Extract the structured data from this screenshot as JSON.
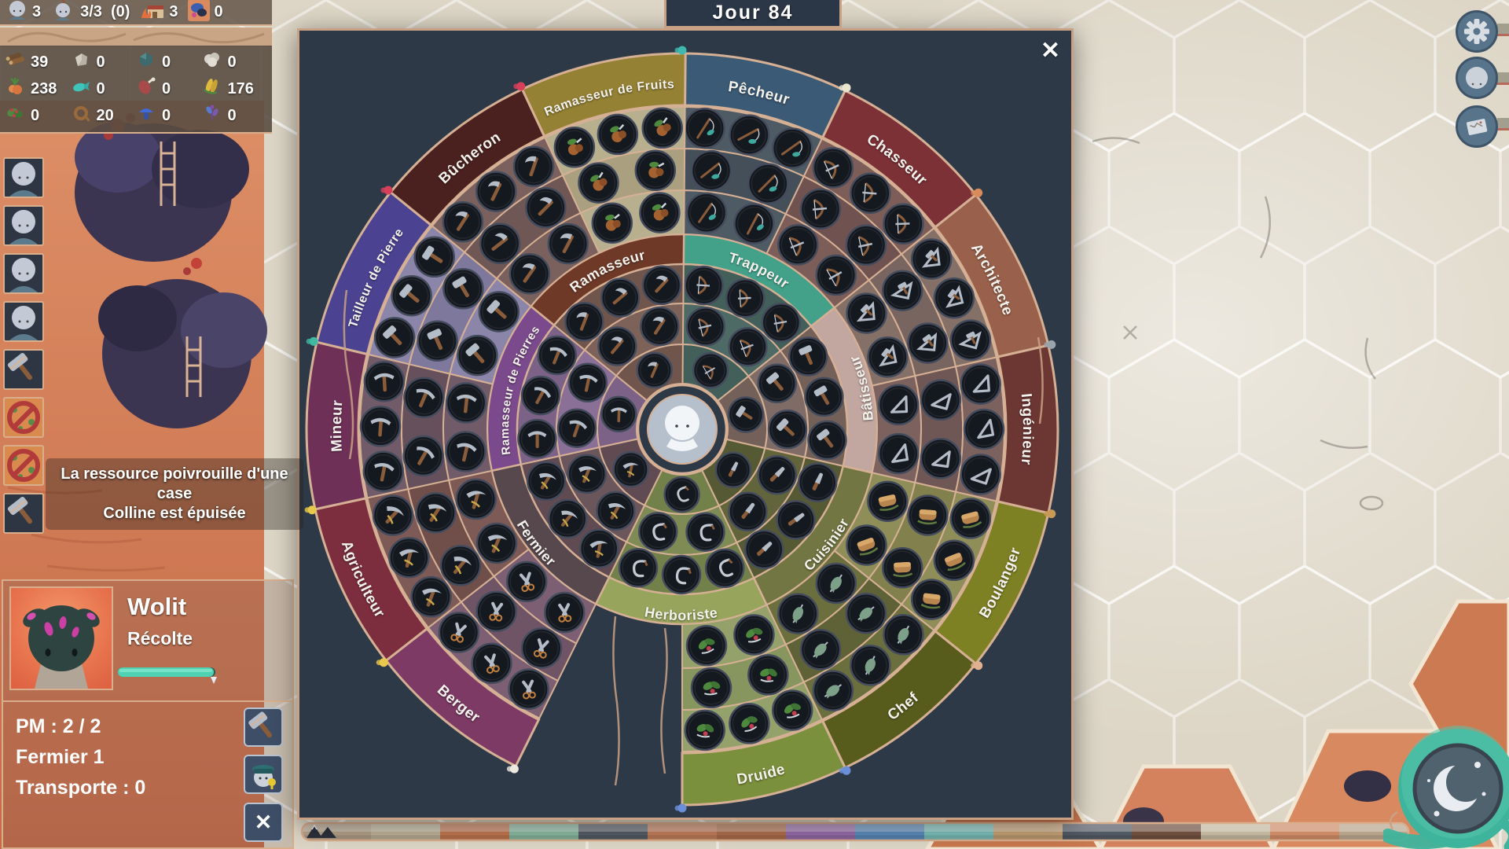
{
  "hud": {
    "day_banner": "Jour 84",
    "top_bar": [
      {
        "icon": "pupil-icon",
        "value": "3"
      },
      {
        "icon": "worker-pupil-icon",
        "value": "3/3"
      },
      {
        "icon": "none",
        "value": "(0)"
      },
      {
        "icon": "camp-icon",
        "value": "3"
      },
      {
        "icon": "tile-icon",
        "value": "0"
      }
    ],
    "resources": [
      {
        "icon": "wood",
        "value": "39"
      },
      {
        "icon": "stone",
        "value": "0"
      },
      {
        "icon": "ore",
        "value": "0"
      },
      {
        "icon": "wool",
        "value": "0"
      },
      {
        "icon": "carrot",
        "value": "238"
      },
      {
        "icon": "fish",
        "value": "0"
      },
      {
        "icon": "meat",
        "value": "0"
      },
      {
        "icon": "corn",
        "value": "176"
      },
      {
        "icon": "berry",
        "value": "0"
      },
      {
        "icon": "rope",
        "value": "20"
      },
      {
        "icon": "mushroom",
        "value": "0"
      },
      {
        "icon": "herb",
        "value": "0"
      }
    ]
  },
  "left_toolbar": [
    {
      "icon": "pupil-portrait"
    },
    {
      "icon": "pupil-portrait"
    },
    {
      "icon": "pupil-portrait"
    },
    {
      "icon": "pupil-portrait"
    },
    {
      "icon": "hammer"
    },
    {
      "icon": "resource-depleted"
    },
    {
      "icon": "resource-depleted"
    },
    {
      "icon": "hammer"
    }
  ],
  "tooltip": {
    "line1": "La ressource poivrouille d'une case",
    "line2": "Colline est épuisée"
  },
  "character_panel": {
    "name": "Wolit",
    "activity": "Récolte",
    "progress_color": "#4ed2b2",
    "stats": [
      "PM : 2 / 2",
      "Fermier 1",
      "Transporte : 0"
    ],
    "buttons": [
      {
        "icon": "hammer"
      },
      {
        "icon": "pupil-captain"
      }
    ],
    "close_label": "✕"
  },
  "job_modal": {
    "close_label": "✕",
    "wheel": {
      "background": "#2d3947",
      "line_color": "#d6b094",
      "center_icon": "pupil",
      "outer_sectors": [
        {
          "label": "Pêcheur",
          "a0": 0,
          "a1": 25.7,
          "band": "#3b5a75",
          "fill": "#4e5a64",
          "fill2": "#454f59",
          "glyph": "rod"
        },
        {
          "label": "Chasseur",
          "a0": 25.7,
          "a1": 51.4,
          "band": "#7c3137",
          "fill": "#7d5d58",
          "fill2": "#705350",
          "glyph": "bow"
        },
        {
          "label": "Architecte",
          "a0": 51.4,
          "a1": 77.1,
          "band": "#99614b",
          "fill": "#857068",
          "fill2": "#786560",
          "glyph": "squarehammer"
        },
        {
          "label": "Ingénieur",
          "a0": 77.1,
          "a1": 102.9,
          "band": "#6c3633",
          "fill": "#7b625f",
          "fill2": "#6e5755",
          "glyph": "square"
        },
        {
          "label": "Boulanger",
          "a0": 102.9,
          "a1": 128.6,
          "band": "#7e8024",
          "fill": "#8f8e59",
          "fill2": "#82814d",
          "glyph": "bread"
        },
        {
          "label": "Chef",
          "a0": 128.6,
          "a1": 154.3,
          "band": "#575c1d",
          "fill": "#6b6e3d",
          "fill2": "#5f6236",
          "glyph": "spit"
        },
        {
          "label": "Druide",
          "a0": 154.3,
          "a1": 180,
          "band": "#7b903c",
          "fill": "#94a16a",
          "fill2": "#87955e",
          "glyph": "leaf"
        },
        {
          "label": "Berger",
          "a0": 206.3,
          "a1": 232,
          "band": "#7c3a64",
          "fill": "#7c5f73",
          "fill2": "#6f5466",
          "glyph": "shears"
        },
        {
          "label": "Agriculteur",
          "a0": 232,
          "a1": 257.7,
          "band": "#7c2e3e",
          "fill": "#7d5a55",
          "fill2": "#704f4b",
          "glyph": "scythe"
        },
        {
          "label": "Mineur",
          "a0": 257.7,
          "a1": 283.4,
          "band": "#6f3057",
          "fill": "#715b68",
          "fill2": "#65505c",
          "glyph": "pick"
        },
        {
          "label": "Tailleur de Pierre",
          "a0": 283.4,
          "a1": 309.1,
          "band": "#4b4391",
          "fill": "#8b85a9",
          "fill2": "#7e789c",
          "glyph": "hammer"
        },
        {
          "label": "Bûcheron",
          "a0": 309.1,
          "a1": 334.8,
          "band": "#4b211f",
          "fill": "#7b615e",
          "fill2": "#6e5754",
          "glyph": "axe"
        },
        {
          "label": "Ramasseur de Fruits",
          "a0": 334.8,
          "a1": 360.5,
          "band": "#948134",
          "fill": "#b8af8f",
          "fill2": "#aaa07f",
          "glyph": "fruit"
        }
      ],
      "inner_sectors": [
        {
          "label": "Trappeur",
          "a0": 0,
          "a1": 51.4,
          "band": "#43a18a",
          "fill": "#4d6b64",
          "fill2": "#435f59",
          "glyph": "bow"
        },
        {
          "label": "Bâtisseur",
          "a0": 51.4,
          "a1": 102.9,
          "band": "#c2a7a0",
          "fill": "#7f6c67",
          "fill2": "#736159",
          "glyph": "hammer"
        },
        {
          "label": "Cuisinier",
          "a0": 102.9,
          "a1": 154.3,
          "band": "#717642",
          "fill": "#62653c",
          "fill2": "#565a34",
          "glyph": "knife"
        },
        {
          "label": "Herboriste",
          "a0": 154.3,
          "a1": 206.3,
          "band": "#97a45c",
          "fill": "#7f8b55",
          "fill2": "#72804a",
          "glyph": "hook"
        },
        {
          "label": "Fermier",
          "a0": 206.3,
          "a1": 257.7,
          "band": "#57484e",
          "fill": "#6b565c",
          "fill2": "#5f4b51",
          "glyph": "scythe"
        },
        {
          "label": "Ramasseur de Pierres",
          "a0": 257.7,
          "a1": 309.1,
          "band": "#7b4a8c",
          "fill": "#8a6f96",
          "fill2": "#7c6287",
          "glyph": "pick"
        },
        {
          "label": "Ramasseur",
          "a0": 309.1,
          "a1": 360.5,
          "band": "#6f3928",
          "fill": "#7d625a",
          "fill2": "#70554d",
          "glyph": "axe"
        }
      ]
    }
  },
  "map_buttons": [
    {
      "icon": "gear-icon"
    },
    {
      "icon": "pupil-face-icon"
    },
    {
      "icon": "map-icon"
    }
  ],
  "night_button": {
    "icon": "moon-icon",
    "color": "#3fb49c"
  },
  "journey_bar": {
    "segments": [
      "#b8a48c",
      "#c2b69c",
      "#c77a52",
      "#8fbfa6",
      "#58606a",
      "#c8825e",
      "#b4714e",
      "#9a6fae",
      "#5e8fc0",
      "#7fc4c0",
      "#c9a477",
      "#525a64",
      "#6e4e3e",
      "#c2b69c",
      "#cc8a66",
      "#b8a48c"
    ]
  }
}
